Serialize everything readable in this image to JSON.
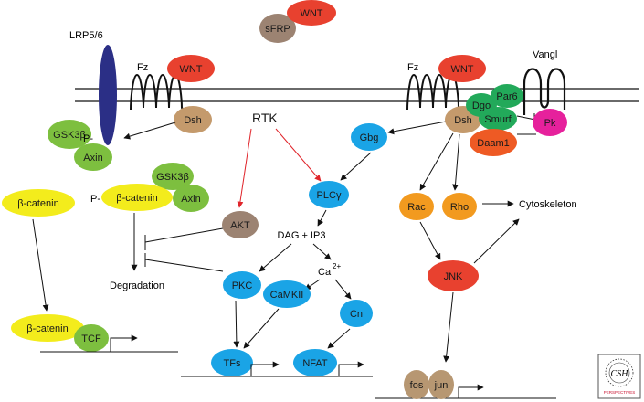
{
  "colors": {
    "wnt": "#e8412f",
    "sfrp": "#9c8372",
    "lrp": "#2b2f86",
    "dsh": "#c49a6c",
    "gsk": "#7dbf3f",
    "catenin": "#f3ec1c",
    "blue": "#1aa4e6",
    "akt": "#9c8372",
    "orange": "#f29a1f",
    "jnk": "#e8412f",
    "daam": "#ee5a24",
    "green": "#22a95a",
    "pk": "#e6219c",
    "nucleus": "#b79772",
    "rtk": "#e0252b"
  },
  "labels": {
    "wnt_top": "WNT",
    "sfrp": "sFRP",
    "lrp": "LRP5/6",
    "fz_left": "Fz",
    "wnt_left": "WNT",
    "fz_right": "Fz",
    "wnt_right": "WNT",
    "vangl": "Vangl",
    "dsh_left": "Dsh",
    "gsk_top": "GSK3β",
    "p_top": "P-",
    "axin_top": "Axin",
    "rtk": "RTK",
    "gbg": "Gbg",
    "dsh_right": "Dsh",
    "dgo": "Dgo",
    "par6": "Par6",
    "smurf": "Smurf",
    "pk": "Pk",
    "daam1": "Daam1",
    "beta_catenin_free": "β-catenin",
    "gsk_mid": "GSK3β",
    "p_mid": "P-",
    "beta_catenin_p": "β-catenin",
    "axin_mid": "Axin",
    "plc": "PLCγ",
    "akt": "AKT",
    "dag_ip3": "DAG + IP3",
    "rac": "Rac",
    "rho": "Rho",
    "cytoskeleton": "Cytoskeleton",
    "ca": "Ca",
    "ca_sup": "2+",
    "degradation": "Degradation",
    "pkc": "PKC",
    "camkii": "CaMKII",
    "jnk": "JNK",
    "cn": "Cn",
    "beta_catenin_nuc": "β-catenin",
    "tcf": "TCF",
    "tfs": "TFs",
    "nfat": "NFAT",
    "fos": "fos",
    "jun": "jun",
    "logo_top": "CSH",
    "logo_bottom": "PERSPECTIVES"
  }
}
